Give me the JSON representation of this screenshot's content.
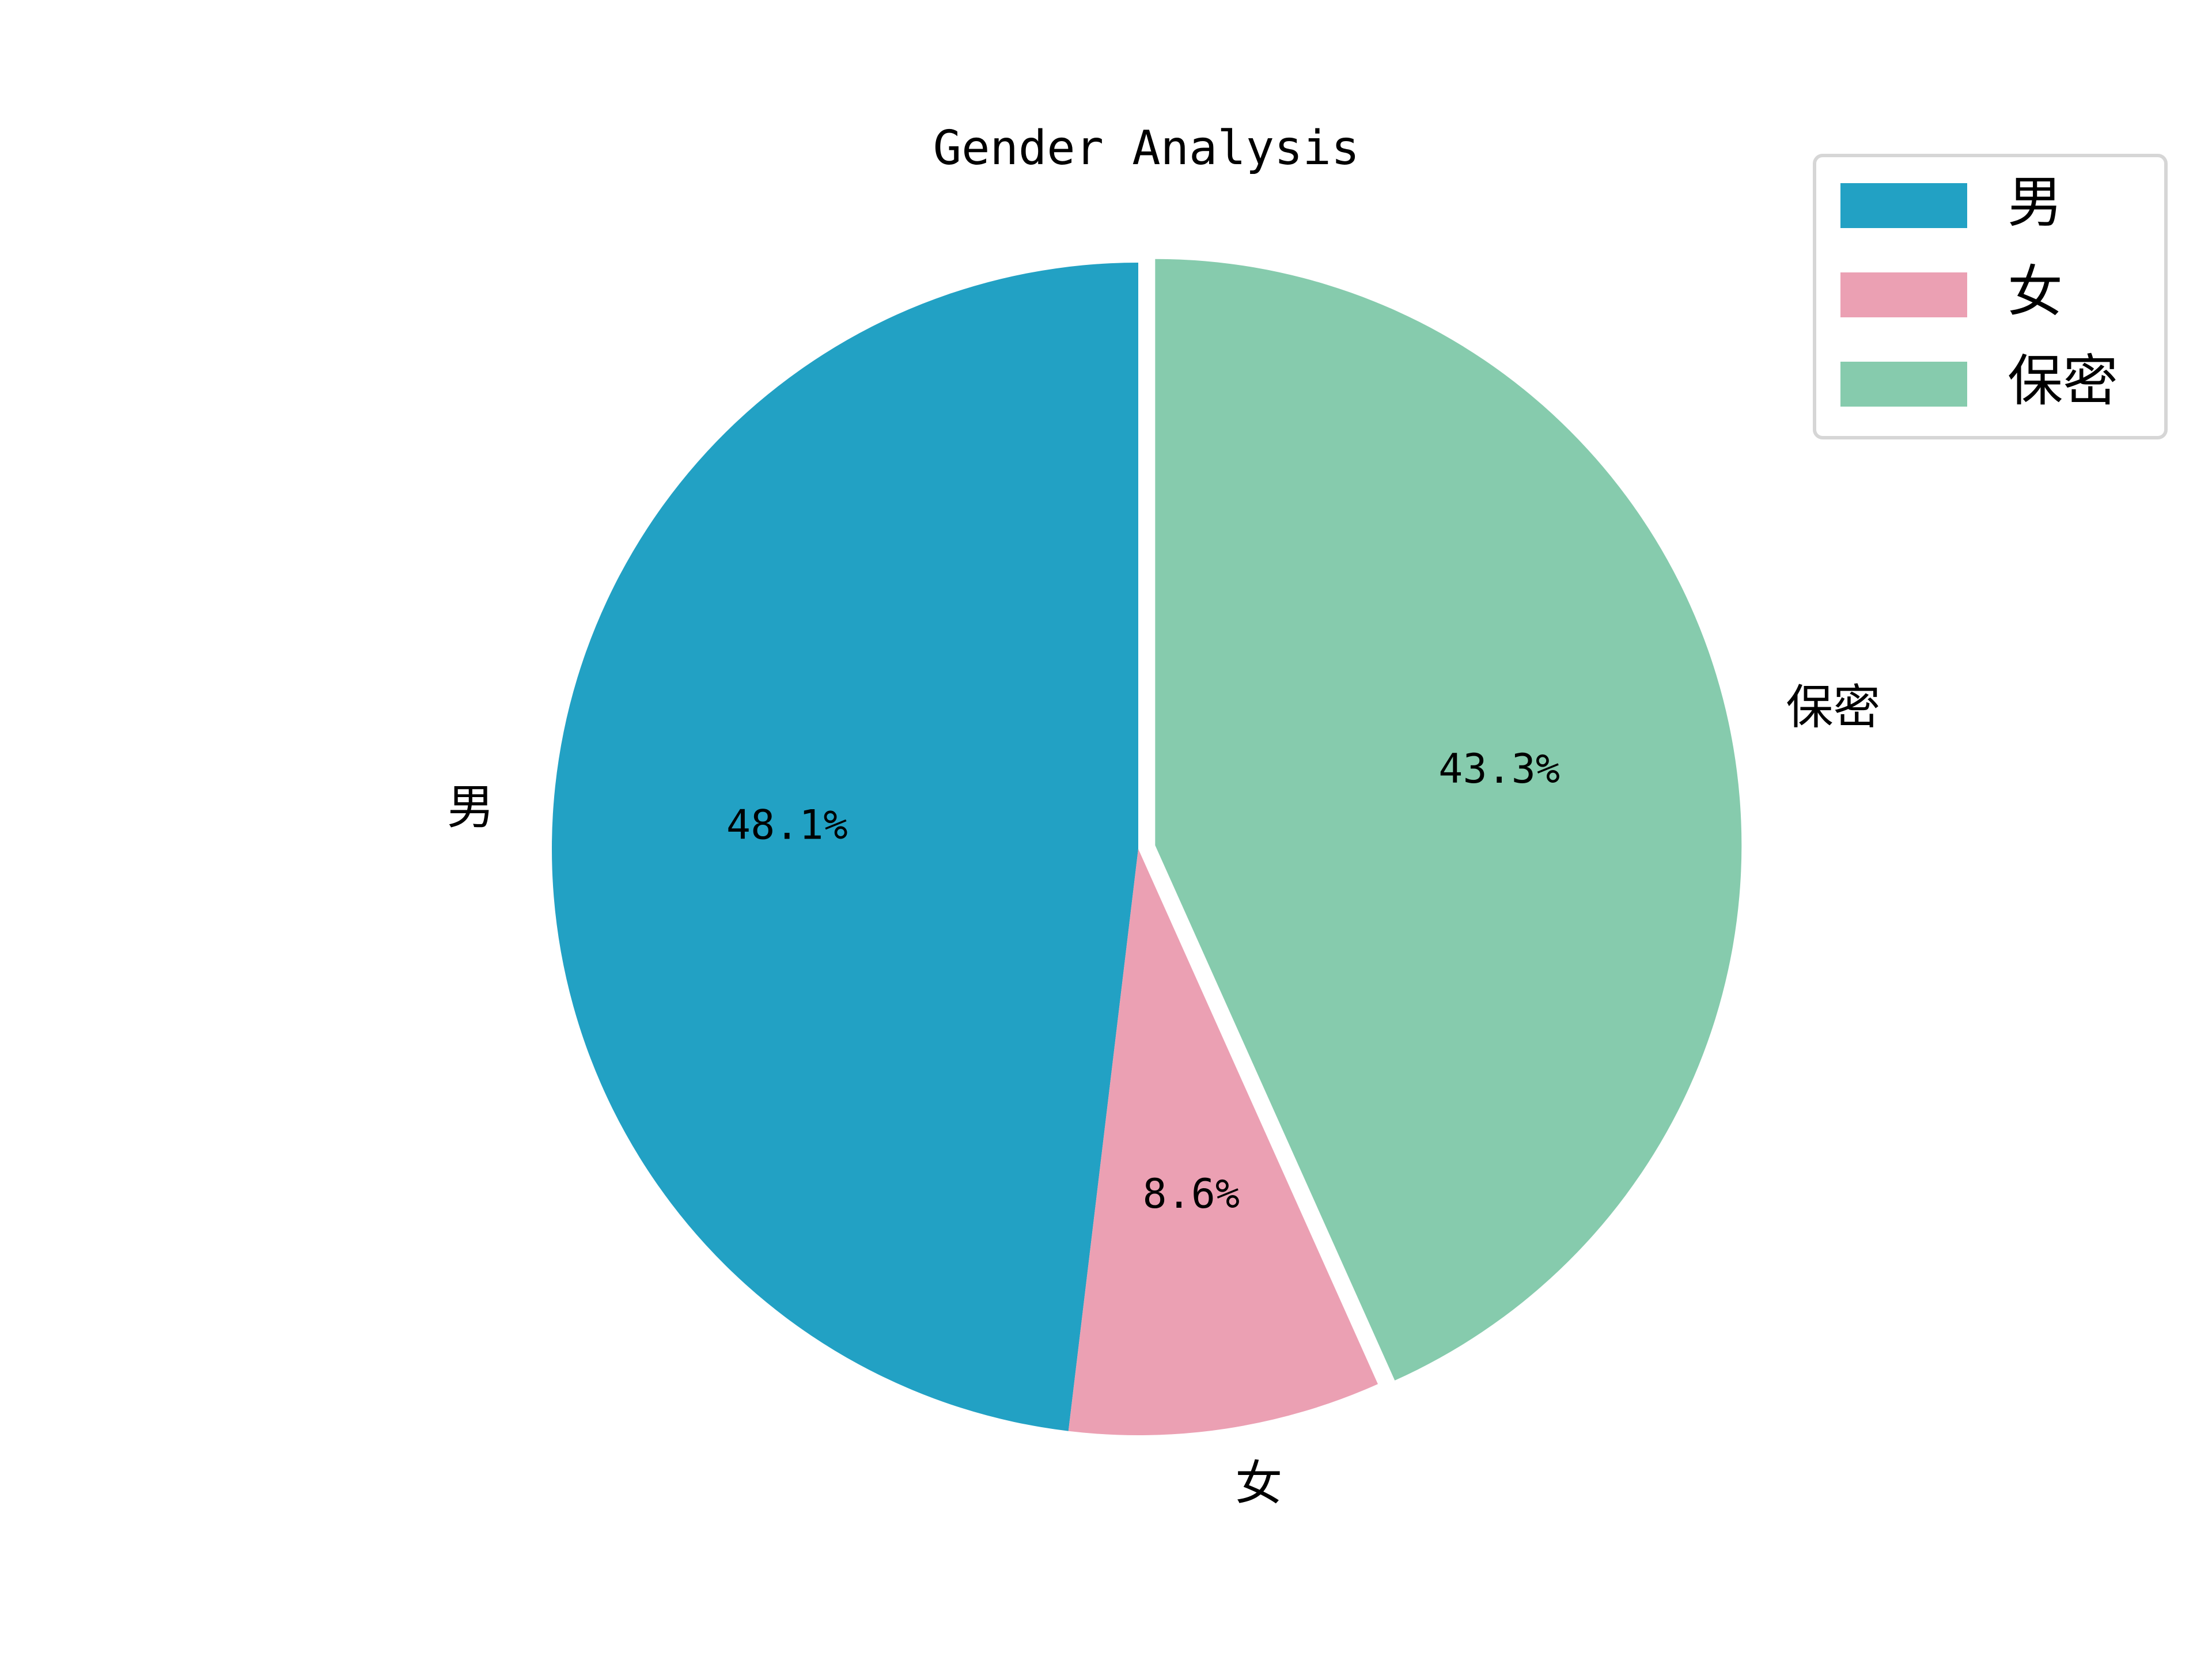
{
  "chart_data": {
    "type": "pie",
    "title": "Gender Analysis",
    "slices": [
      {
        "label": "男",
        "value": 48.1,
        "value_label": "48.1%",
        "color": "#22a1c4",
        "explode": false
      },
      {
        "label": "女",
        "value": 8.6,
        "value_label": "8.6%",
        "color": "#eba0b3",
        "explode": false
      },
      {
        "label": "保密",
        "value": 43.3,
        "value_label": "43.3%",
        "color": "#86cbad",
        "explode": true
      }
    ],
    "start_angle_deg": 90,
    "direction": "counterclockwise",
    "legend": {
      "position": "top-right",
      "entries": [
        "男",
        "女",
        "保密"
      ]
    }
  }
}
